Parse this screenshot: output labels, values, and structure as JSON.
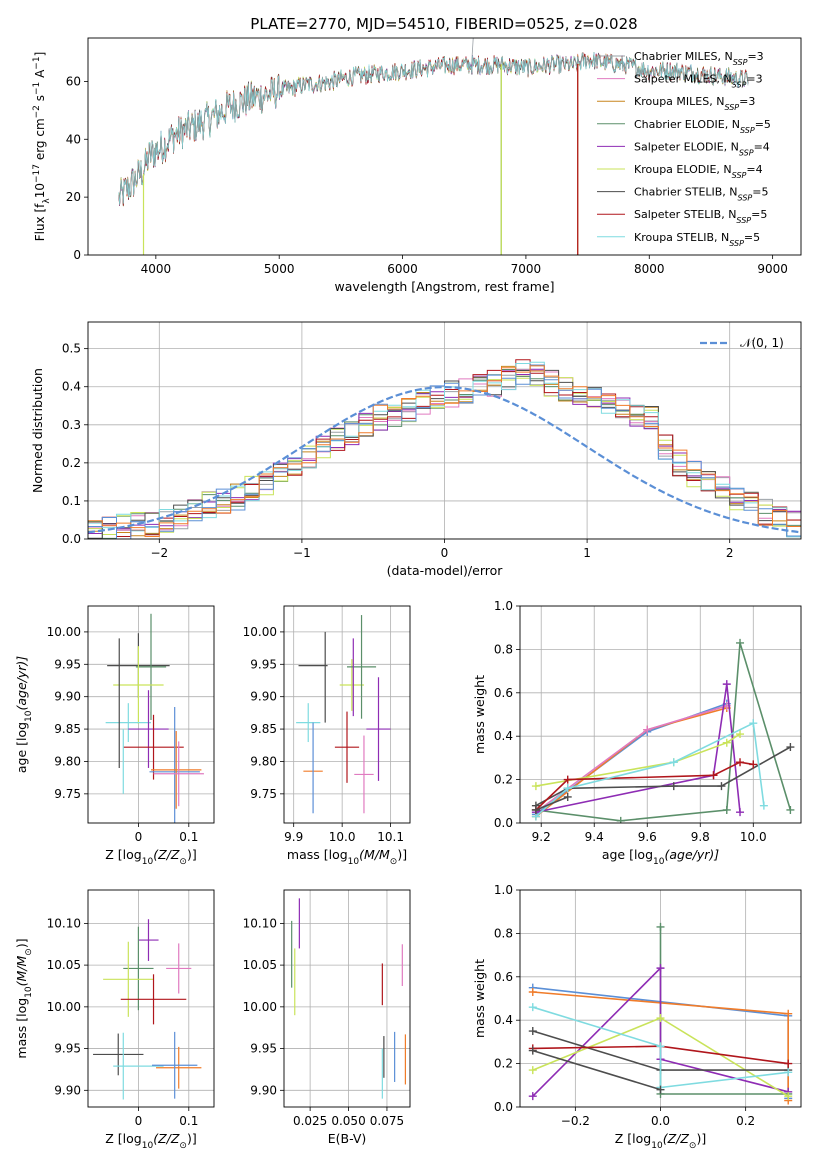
{
  "figure_title": "PLATE=2770, MJD=54510, FIBERID=0525, z=0.028",
  "colors": {
    "chabrier_miles": "#9aa0a6",
    "salpeter_miles": "#e07bc0",
    "kroupa_miles": "#c8861e",
    "chabrier_elodie": "#5b8f6a",
    "salpeter_elodie": "#8e2cb4",
    "kroupa_elodie": "#c9e35a",
    "chabrier_stelib": "#4d4d4d",
    "salpeter_stelib": "#b0161c",
    "kroupa_stelib": "#7fdbe0",
    "normal": "#5b8fd6",
    "orange": "#f07c2a",
    "blue": "#5b8fd6"
  },
  "chart_data": [
    {
      "id": "spectrum",
      "type": "line",
      "title": "PLATE=2770, MJD=54510, FIBERID=0525, z=0.028",
      "xlabel": "wavelength [Angstrom, rest frame]",
      "ylabel": "Flux [f",
      "ylabel_rest": "10",
      "ylabel_exp": "−17",
      "ylabel_unit": " erg cm",
      "ylabel_e2": "−2",
      "ylabel_s": " s",
      "ylabel_e3": "−1",
      "ylabel_a": " A",
      "ylabel_e4": "−1",
      "ylabel_end": "]",
      "xlim": [
        3450,
        9230
      ],
      "ylim": [
        0,
        75
      ],
      "xticks": [
        4000,
        5000,
        6000,
        7000,
        8000,
        9000
      ],
      "yticks": [
        0,
        20,
        40,
        60
      ],
      "continuum": {
        "x": [
          3700,
          3800,
          3900,
          3950,
          4050,
          4150,
          4300,
          4450,
          4600,
          4800,
          5000,
          5200,
          5400,
          5600,
          5800,
          6000,
          6200,
          6400,
          6600,
          6800,
          7000,
          7200,
          7400,
          7500,
          7600,
          7800,
          8000,
          8200,
          8400,
          8600,
          8800
        ],
        "y": [
          20,
          25,
          30,
          35,
          38,
          42,
          45,
          48,
          52,
          55,
          57,
          59,
          60,
          62,
          63,
          64,
          65,
          66,
          66,
          66,
          65,
          66,
          66,
          68,
          67,
          66,
          64,
          64,
          63,
          62,
          61
        ]
      },
      "dropouts": [
        {
          "x": 3900,
          "y0": 28,
          "y1": 0,
          "series": "kroupa_elodie"
        },
        {
          "x": 6800,
          "y0": 66,
          "y1": 0,
          "series": "chabrier_elodie"
        },
        {
          "x": 6800,
          "y0": 66,
          "y1": 0,
          "series": "kroupa_elodie"
        },
        {
          "x": 7420,
          "y0": 66,
          "y1": 0,
          "series": "kroupa_miles"
        },
        {
          "x": 7420,
          "y0": 66,
          "y1": 0,
          "series": "salpeter_stelib"
        }
      ],
      "legend": [
        {
          "key": "chabrier_miles",
          "label": "Chabrier MILES, N",
          "sub": "SSP",
          "tail": "=3"
        },
        {
          "key": "salpeter_miles",
          "label": "Salpeter MILES, N",
          "sub": "SSP",
          "tail": "=3"
        },
        {
          "key": "kroupa_miles",
          "label": "Kroupa MILES, N",
          "sub": "SSP",
          "tail": "=3"
        },
        {
          "key": "chabrier_elodie",
          "label": "Chabrier ELODIE, N",
          "sub": "SSP",
          "tail": "=5"
        },
        {
          "key": "salpeter_elodie",
          "label": "Salpeter ELODIE, N",
          "sub": "SSP",
          "tail": "=4"
        },
        {
          "key": "kroupa_elodie",
          "label": "Kroupa ELODIE, N",
          "sub": "SSP",
          "tail": "=4"
        },
        {
          "key": "chabrier_stelib",
          "label": "Chabrier STELIB, N",
          "sub": "SSP",
          "tail": "=5"
        },
        {
          "key": "salpeter_stelib",
          "label": "Salpeter STELIB, N",
          "sub": "SSP",
          "tail": "=5"
        },
        {
          "key": "kroupa_stelib",
          "label": "Kroupa STELIB, N",
          "sub": "SSP",
          "tail": "=5"
        }
      ]
    },
    {
      "id": "residuals",
      "type": "histogram",
      "xlabel": "(data-model)/error",
      "ylabel": "Normed distribution",
      "xlim": [
        -2.5,
        2.5
      ],
      "ylim": [
        0,
        0.57
      ],
      "xticks": [
        -2,
        -1,
        0,
        1,
        2
      ],
      "yticks": [
        0.0,
        0.1,
        0.2,
        0.3,
        0.4,
        0.5
      ],
      "grid": true,
      "normal_label": "𝒩(0, 1)",
      "bin_width": 0.1,
      "bin_start": -2.5,
      "base": [
        0.02,
        0.025,
        0.03,
        0.035,
        0.04,
        0.05,
        0.06,
        0.075,
        0.09,
        0.1,
        0.11,
        0.13,
        0.15,
        0.17,
        0.19,
        0.21,
        0.24,
        0.26,
        0.28,
        0.3,
        0.32,
        0.33,
        0.34,
        0.36,
        0.37,
        0.38,
        0.39,
        0.4,
        0.41,
        0.42,
        0.44,
        0.43,
        0.41,
        0.39,
        0.38,
        0.37,
        0.36,
        0.35,
        0.33,
        0.32,
        0.24,
        0.2,
        0.17,
        0.15,
        0.13,
        0.11,
        0.09,
        0.07,
        0.06,
        0.04
      ]
    },
    {
      "id": "age_vs_z",
      "type": "errorbar",
      "xlabel": "Z [log",
      "xlabel_sub": "10",
      "xlabel_rest": "(Z/Z",
      "xlabel_end": ")]",
      "ylabel": "age  [log",
      "ylabel_sub": "10",
      "ylabel_rest": "(age/yr)]",
      "xlim": [
        -0.1,
        0.15
      ],
      "ylim": [
        9.705,
        10.04
      ],
      "xticks": [
        0.0,
        0.1
      ],
      "yticks": [
        9.75,
        9.8,
        9.85,
        9.9,
        9.95,
        10.0
      ],
      "points": [
        {
          "s": "chabrier_stelib",
          "x": 0.0,
          "y": 9.948,
          "xe": 0.062,
          "ye": 0.05
        },
        {
          "s": "chabrier_elodie",
          "x": 0.025,
          "y": 9.946,
          "xe": 0.03,
          "ye": 0.082
        },
        {
          "s": "kroupa_elodie",
          "x": 0.0,
          "y": 9.918,
          "xe": 0.05,
          "ye": 0.06
        },
        {
          "s": "kroupa_stelib",
          "x": -0.02,
          "y": 9.86,
          "xe": 0.045,
          "ye": 0.03
        },
        {
          "s": "salpeter_elodie",
          "x": 0.02,
          "y": 9.85,
          "xe": 0.04,
          "ye": 0.06
        },
        {
          "s": "salpeter_stelib",
          "x": 0.03,
          "y": 9.822,
          "xe": 0.06,
          "ye": 0.05
        },
        {
          "s": "blue",
          "x": 0.072,
          "y": 9.784,
          "xe": 0.05,
          "ye": 0.1
        },
        {
          "s": "orange",
          "x": 0.075,
          "y": 9.787,
          "xe": 0.05,
          "ye": 0.06
        },
        {
          "s": "salpeter_miles",
          "x": 0.08,
          "y": 9.781,
          "xe": 0.05,
          "ye": 0.05
        },
        {
          "s": "chabrier_stelib",
          "x": -0.038,
          "y": 9.89,
          "xe": 0.0,
          "ye": 0.1
        },
        {
          "s": "kroupa_stelib",
          "x": -0.03,
          "y": 9.8,
          "xe": 0.0,
          "ye": 0.05
        }
      ]
    },
    {
      "id": "age_vs_mass",
      "type": "errorbar",
      "xlabel": "mass [log",
      "xlabel_sub": "10",
      "xlabel_rest": "(M/M",
      "xlabel_end": ")]",
      "xlim": [
        9.88,
        10.14
      ],
      "ylim": [
        9.705,
        10.04
      ],
      "xticks": [
        9.9,
        10.0,
        10.1
      ],
      "yticks": [
        9.75,
        9.8,
        9.85,
        9.9,
        9.95,
        10.0
      ],
      "points": [
        {
          "s": "chabrier_stelib",
          "x": 9.94,
          "y": 9.948,
          "xe": 0.03,
          "ye": 0.0
        },
        {
          "s": "chabrier_stelib",
          "x": 9.965,
          "y": 9.93,
          "xe": 0.0,
          "ye": 0.07
        },
        {
          "s": "kroupa_stelib",
          "x": 9.93,
          "y": 9.86,
          "xe": 0.025,
          "ye": 0.03
        },
        {
          "s": "orange",
          "x": 9.94,
          "y": 9.785,
          "xe": 0.02,
          "ye": 0.0
        },
        {
          "s": "blue",
          "x": 9.94,
          "y": 9.79,
          "xe": 0.0,
          "ye": 0.07
        },
        {
          "s": "salpeter_stelib",
          "x": 10.01,
          "y": 9.822,
          "xe": 0.025,
          "ye": 0.055
        },
        {
          "s": "kroupa_elodie",
          "x": 10.02,
          "y": 9.918,
          "xe": 0.025,
          "ye": 0.04
        },
        {
          "s": "chabrier_elodie",
          "x": 10.04,
          "y": 9.946,
          "xe": 0.03,
          "ye": 0.08
        },
        {
          "s": "salpeter_elodie",
          "x": 10.075,
          "y": 9.85,
          "xe": 0.025,
          "ye": 0.08
        },
        {
          "s": "salpeter_miles",
          "x": 10.045,
          "y": 9.78,
          "xe": 0.02,
          "ye": 0.06
        },
        {
          "s": "salpeter_elodie",
          "x": 10.023,
          "y": 9.93,
          "xe": 0.0,
          "ye": 0.06
        }
      ]
    },
    {
      "id": "weight_vs_age",
      "type": "line",
      "xlabel": "age  [log",
      "xlabel_sub": "10",
      "xlabel_rest": "(age/yr)]",
      "ylabel": "mass weight",
      "xlim": [
        9.12,
        10.18
      ],
      "ylim": [
        0,
        1.0
      ],
      "xticks": [
        9.2,
        9.4,
        9.6,
        9.8,
        10.0
      ],
      "yticks": [
        0.0,
        0.2,
        0.4,
        0.6,
        0.8,
        1.0
      ],
      "grid": true,
      "series": [
        {
          "s": "blue",
          "x": [
            9.18,
            9.6,
            9.9
          ],
          "y": [
            0.04,
            0.42,
            0.55
          ]
        },
        {
          "s": "orange",
          "x": [
            9.18,
            9.6,
            9.9
          ],
          "y": [
            0.03,
            0.43,
            0.53
          ]
        },
        {
          "s": "salpeter_miles",
          "x": [
            9.18,
            9.6,
            9.9
          ],
          "y": [
            0.05,
            0.43,
            0.54
          ]
        },
        {
          "s": "chabrier_elodie",
          "x": [
            9.18,
            9.5,
            9.9,
            9.95,
            10.14
          ],
          "y": [
            0.06,
            0.01,
            0.06,
            0.83,
            0.06
          ]
        },
        {
          "s": "salpeter_elodie",
          "x": [
            9.18,
            9.85,
            9.9,
            9.95
          ],
          "y": [
            0.05,
            0.22,
            0.64,
            0.05
          ]
        },
        {
          "s": "kroupa_elodie",
          "x": [
            9.18,
            9.7,
            9.9,
            9.95
          ],
          "y": [
            0.17,
            0.28,
            0.37,
            0.41
          ]
        },
        {
          "s": "chabrier_stelib",
          "x": [
            9.18,
            9.3,
            9.7,
            9.88,
            10.14
          ],
          "y": [
            0.08,
            0.16,
            0.17,
            0.17,
            0.35
          ]
        },
        {
          "s": "salpeter_stelib",
          "x": [
            9.18,
            9.3,
            9.85,
            9.95,
            10.0
          ],
          "y": [
            0.06,
            0.2,
            0.22,
            0.28,
            0.27
          ]
        },
        {
          "s": "kroupa_stelib",
          "x": [
            9.18,
            9.3,
            9.7,
            10.0,
            10.04
          ],
          "y": [
            0.03,
            0.16,
            0.28,
            0.46,
            0.08
          ]
        },
        {
          "s": "chabrier_stelib",
          "x": [
            9.18,
            9.3
          ],
          "y": [
            0.06,
            0.12
          ]
        }
      ]
    },
    {
      "id": "mass_vs_z",
      "type": "errorbar",
      "xlabel": "Z [log",
      "xlabel_sub": "10",
      "xlabel_rest": "(Z/Z",
      "xlabel_end": ")]",
      "ylabel": "mass [log",
      "ylabel_sub": "10",
      "ylabel_rest": "(M/M",
      "ylabel_end": ")]",
      "xlim": [
        -0.1,
        0.15
      ],
      "ylim": [
        9.88,
        10.14
      ],
      "xticks": [
        0.0,
        0.1
      ],
      "yticks": [
        9.9,
        9.95,
        10.0,
        10.05,
        10.1
      ],
      "points": [
        {
          "s": "salpeter_elodie",
          "x": 0.02,
          "y": 10.08,
          "xe": 0.02,
          "ye": 0.025
        },
        {
          "s": "salpeter_miles",
          "x": 0.08,
          "y": 10.046,
          "xe": 0.025,
          "ye": 0.03
        },
        {
          "s": "chabrier_elodie",
          "x": 0.0,
          "y": 10.046,
          "xe": 0.03,
          "ye": 0.05
        },
        {
          "s": "kroupa_elodie",
          "x": -0.02,
          "y": 10.033,
          "xe": 0.05,
          "ye": 0.045
        },
        {
          "s": "salpeter_stelib",
          "x": 0.03,
          "y": 10.009,
          "xe": 0.065,
          "ye": 0.03
        },
        {
          "s": "chabrier_stelib",
          "x": -0.04,
          "y": 9.943,
          "xe": 0.05,
          "ye": 0.025
        },
        {
          "s": "kroupa_stelib",
          "x": -0.03,
          "y": 9.929,
          "xe": 0.0,
          "ye": 0.04
        },
        {
          "s": "kroupa_stelib",
          "x": 0.0,
          "y": 9.929,
          "xe": 0.05,
          "ye": 0.0
        },
        {
          "s": "orange",
          "x": 0.08,
          "y": 9.927,
          "xe": 0.045,
          "ye": 0.025
        },
        {
          "s": "blue",
          "x": 0.072,
          "y": 9.93,
          "xe": 0.045,
          "ye": 0.04
        }
      ]
    },
    {
      "id": "mass_vs_ebv",
      "type": "errorbar",
      "xlabel": "E(B-V)",
      "xlim": [
        0.008,
        0.09
      ],
      "ylim": [
        9.88,
        10.14
      ],
      "xticks": [
        0.025,
        0.05,
        0.075
      ],
      "xtick_labels": [
        "0.025",
        "0.050",
        "0.075"
      ],
      "yticks": [
        9.9,
        9.95,
        10.0,
        10.05,
        10.1
      ],
      "points": [
        {
          "s": "salpeter_elodie",
          "x": 0.018,
          "y": 10.1,
          "xe": 0.0,
          "ye": 0.03
        },
        {
          "s": "chabrier_elodie",
          "x": 0.013,
          "y": 10.063,
          "xe": 0.0,
          "ye": 0.04
        },
        {
          "s": "kroupa_elodie",
          "x": 0.015,
          "y": 10.03,
          "xe": 0.0,
          "ye": 0.04
        },
        {
          "s": "salpeter_stelib",
          "x": 0.072,
          "y": 10.027,
          "xe": 0.0,
          "ye": 0.025
        },
        {
          "s": "salpeter_miles",
          "x": 0.085,
          "y": 10.05,
          "xe": 0.0,
          "ye": 0.025
        },
        {
          "s": "chabrier_stelib",
          "x": 0.073,
          "y": 9.94,
          "xe": 0.0,
          "ye": 0.025
        },
        {
          "s": "kroupa_stelib",
          "x": 0.072,
          "y": 9.92,
          "xe": 0.0,
          "ye": 0.03
        },
        {
          "s": "blue",
          "x": 0.08,
          "y": 9.94,
          "xe": 0.0,
          "ye": 0.03
        },
        {
          "s": "orange",
          "x": 0.087,
          "y": 9.937,
          "xe": 0.0,
          "ye": 0.03
        }
      ]
    },
    {
      "id": "weight_vs_z",
      "type": "line",
      "xlabel": "Z [log",
      "xlabel_sub": "10",
      "xlabel_rest": "(Z/Z",
      "xlabel_end": ")]",
      "ylabel": "mass weight",
      "xlim": [
        -0.33,
        0.33
      ],
      "ylim": [
        0,
        1.0
      ],
      "xticks": [
        -0.2,
        0.0,
        0.2
      ],
      "yticks": [
        0.0,
        0.2,
        0.4,
        0.6,
        0.8,
        1.0
      ],
      "grid": true,
      "series": [
        {
          "s": "blue",
          "x": [
            -0.3,
            0.3,
            0.3
          ],
          "y": [
            0.55,
            0.42,
            0.04
          ]
        },
        {
          "s": "orange",
          "x": [
            -0.3,
            0.3,
            0.3
          ],
          "y": [
            0.53,
            0.43,
            0.03
          ]
        },
        {
          "s": "chabrier_elodie",
          "x": [
            0.0,
            0.0,
            0.3
          ],
          "y": [
            0.83,
            0.06,
            0.06
          ]
        },
        {
          "s": "salpeter_elodie",
          "x": [
            -0.3,
            0.0,
            0.0,
            0.3
          ],
          "y": [
            0.05,
            0.64,
            0.22,
            0.07
          ]
        },
        {
          "s": "kroupa_elodie",
          "x": [
            -0.3,
            0.0,
            0.3
          ],
          "y": [
            0.17,
            0.41,
            0.05
          ]
        },
        {
          "s": "chabrier_stelib",
          "x": [
            -0.3,
            0.0,
            0.3
          ],
          "y": [
            0.35,
            0.17,
            0.17
          ]
        },
        {
          "s": "salpeter_stelib",
          "x": [
            -0.3,
            0.0,
            0.3
          ],
          "y": [
            0.27,
            0.28,
            0.2
          ]
        },
        {
          "s": "kroupa_stelib",
          "x": [
            -0.3,
            0.0,
            0.0,
            0.3
          ],
          "y": [
            0.46,
            0.28,
            0.09,
            0.16
          ]
        },
        {
          "s": "chabrier_stelib",
          "x": [
            -0.3,
            0.0
          ],
          "y": [
            0.26,
            0.08
          ]
        }
      ]
    }
  ]
}
